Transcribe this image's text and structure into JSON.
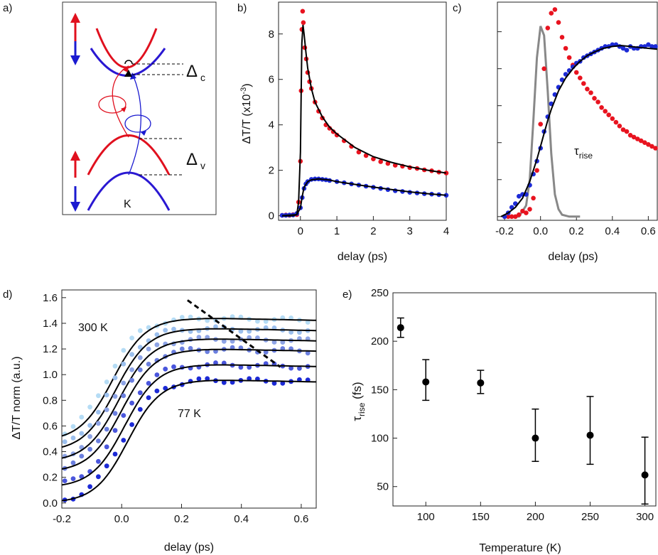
{
  "panel_letters": [
    "a)",
    "b)",
    "c)",
    "d)",
    "e)"
  ],
  "schematic": {
    "delta_c": "Δ",
    "delta_c_sub": "c",
    "delta_v": "Δ",
    "delta_v_sub": "v",
    "k_label": "K",
    "colors": {
      "spin_up": "#e0101e",
      "spin_down": "#1a1ad0"
    }
  },
  "chart_data": [
    {
      "panel": "b)",
      "type": "scatter",
      "xlabel": "delay (ps)",
      "ylabel": "ΔT/T (x10",
      "ylabel_exp": "-3",
      "ylabel_end": ")",
      "xlim": [
        -0.6,
        4.0
      ],
      "ylim": [
        -0.2,
        9.4
      ],
      "xticks": [
        0,
        1,
        2,
        3,
        4
      ],
      "yticks": [
        0,
        2,
        4,
        6,
        8
      ],
      "series": [
        {
          "color": "#e8131f",
          "kind": "points",
          "x": [
            -0.5,
            -0.4,
            -0.3,
            -0.2,
            -0.1,
            -0.05,
            0.0,
            0.02,
            0.04,
            0.06,
            0.08,
            0.12,
            0.16,
            0.2,
            0.25,
            0.3,
            0.4,
            0.5,
            0.6,
            0.7,
            0.8,
            0.9,
            1.0,
            1.2,
            1.4,
            1.6,
            1.8,
            2.0,
            2.2,
            2.4,
            2.6,
            2.8,
            3.0,
            3.2,
            3.4,
            3.6,
            3.8,
            4.0
          ],
          "y": [
            0.02,
            0.03,
            0.02,
            0.05,
            0.05,
            0.6,
            2.4,
            5.5,
            8.2,
            9.0,
            8.5,
            7.4,
            6.9,
            6.3,
            5.9,
            5.6,
            5.0,
            4.6,
            4.3,
            4.0,
            3.85,
            3.7,
            3.55,
            3.3,
            3.05,
            2.8,
            2.65,
            2.5,
            2.38,
            2.3,
            2.22,
            2.18,
            2.12,
            2.08,
            2.02,
            1.98,
            1.92,
            1.88
          ]
        },
        {
          "color": "#1c2ad6",
          "kind": "points",
          "x": [
            -0.5,
            -0.4,
            -0.3,
            -0.2,
            -0.1,
            0.0,
            0.05,
            0.1,
            0.15,
            0.2,
            0.3,
            0.4,
            0.5,
            0.6,
            0.7,
            0.8,
            1.0,
            1.2,
            1.4,
            1.6,
            1.8,
            2.0,
            2.2,
            2.4,
            2.6,
            2.8,
            3.0,
            3.2,
            3.4,
            3.6,
            3.8,
            4.0
          ],
          "y": [
            0.02,
            0.02,
            0.03,
            0.03,
            0.1,
            0.35,
            0.8,
            1.2,
            1.4,
            1.5,
            1.6,
            1.62,
            1.62,
            1.6,
            1.58,
            1.55,
            1.5,
            1.45,
            1.4,
            1.35,
            1.3,
            1.25,
            1.2,
            1.15,
            1.1,
            1.07,
            1.03,
            1.0,
            0.97,
            0.95,
            0.93,
            0.9
          ]
        },
        {
          "color": "#000000",
          "kind": "line",
          "x": [
            -0.5,
            -0.2,
            -0.1,
            -0.05,
            0.0,
            0.02,
            0.04,
            0.07,
            0.1,
            0.15,
            0.2,
            0.3,
            0.4,
            0.6,
            0.8,
            1.0,
            1.5,
            2.0,
            2.5,
            3.0,
            3.5,
            4.0
          ],
          "y": [
            0.0,
            0.0,
            0.05,
            0.6,
            2.8,
            5.3,
            7.6,
            8.4,
            8.0,
            7.2,
            6.5,
            5.6,
            5.0,
            4.35,
            3.9,
            3.6,
            3.0,
            2.6,
            2.35,
            2.15,
            2.0,
            1.88
          ]
        },
        {
          "color": "#000000",
          "kind": "line",
          "x": [
            -0.5,
            -0.1,
            0.0,
            0.05,
            0.1,
            0.2,
            0.3,
            0.5,
            0.8,
            1.0,
            1.5,
            2.0,
            2.5,
            3.0,
            3.5,
            4.0
          ],
          "y": [
            0.0,
            0.05,
            0.35,
            0.85,
            1.25,
            1.5,
            1.58,
            1.62,
            1.57,
            1.5,
            1.38,
            1.26,
            1.15,
            1.05,
            0.97,
            0.9
          ]
        }
      ]
    },
    {
      "panel": "c)",
      "type": "scatter",
      "xlabel": "delay (ps)",
      "annotation": "τ",
      "annotation_sub": "rise",
      "xlim": [
        -0.24,
        0.65
      ],
      "ylim": [
        -0.02,
        1.16
      ],
      "xticks": [
        -0.2,
        0.0,
        0.2,
        0.4,
        0.6
      ],
      "xticklabels": [
        "-0.2",
        "0.0",
        "0.2",
        "0.4",
        "0.6"
      ],
      "yticks": [
        0.0,
        0.2,
        0.4,
        0.6,
        0.8,
        1.0
      ],
      "yticklabels_shown": false,
      "series": [
        {
          "color": "#e8131f",
          "kind": "points",
          "x": [
            -0.2,
            -0.18,
            -0.16,
            -0.14,
            -0.12,
            -0.1,
            -0.08,
            -0.06,
            -0.04,
            -0.02,
            0.0,
            0.02,
            0.04,
            0.06,
            0.08,
            0.1,
            0.12,
            0.14,
            0.16,
            0.18,
            0.2,
            0.22,
            0.24,
            0.26,
            0.28,
            0.3,
            0.32,
            0.34,
            0.36,
            0.38,
            0.4,
            0.42,
            0.44,
            0.46,
            0.48,
            0.5,
            0.52,
            0.54,
            0.56,
            0.58,
            0.6,
            0.62,
            0.64
          ],
          "y": [
            0.0,
            0.0,
            0.0,
            0.0,
            0.01,
            0.03,
            0.02,
            0.04,
            0.1,
            0.25,
            0.5,
            0.8,
            1.02,
            1.1,
            1.12,
            1.05,
            0.97,
            0.91,
            0.86,
            0.82,
            0.78,
            0.75,
            0.72,
            0.69,
            0.67,
            0.64,
            0.62,
            0.59,
            0.57,
            0.55,
            0.53,
            0.51,
            0.49,
            0.47,
            0.46,
            0.44,
            0.43,
            0.42,
            0.41,
            0.4,
            0.39,
            0.38,
            0.37
          ]
        },
        {
          "color": "#1c2ad6",
          "kind": "points",
          "x": [
            -0.2,
            -0.18,
            -0.16,
            -0.14,
            -0.12,
            -0.1,
            -0.08,
            -0.06,
            -0.04,
            -0.02,
            0.0,
            0.02,
            0.04,
            0.06,
            0.08,
            0.1,
            0.12,
            0.14,
            0.16,
            0.18,
            0.2,
            0.22,
            0.24,
            0.26,
            0.28,
            0.3,
            0.32,
            0.34,
            0.36,
            0.38,
            0.4,
            0.42,
            0.44,
            0.46,
            0.48,
            0.5,
            0.52,
            0.54,
            0.56,
            0.58,
            0.6,
            0.62,
            0.64
          ],
          "y": [
            0.0,
            0.02,
            0.05,
            0.07,
            0.11,
            0.12,
            0.12,
            0.17,
            0.23,
            0.3,
            0.37,
            0.46,
            0.54,
            0.61,
            0.66,
            0.7,
            0.74,
            0.77,
            0.79,
            0.81,
            0.83,
            0.84,
            0.86,
            0.87,
            0.88,
            0.89,
            0.9,
            0.91,
            0.92,
            0.92,
            0.93,
            0.93,
            0.92,
            0.91,
            0.9,
            0.92,
            0.91,
            0.91,
            0.92,
            0.92,
            0.93,
            0.92,
            0.92
          ]
        },
        {
          "color": "#000000",
          "kind": "line",
          "x": [
            -0.22,
            -0.18,
            -0.14,
            -0.1,
            -0.06,
            -0.02,
            0.0,
            0.02,
            0.04,
            0.06,
            0.08,
            0.1,
            0.14,
            0.18,
            0.22,
            0.26,
            0.3,
            0.35,
            0.4,
            0.45,
            0.5,
            0.55,
            0.6,
            0.65
          ],
          "y": [
            0.0,
            0.02,
            0.05,
            0.1,
            0.19,
            0.31,
            0.38,
            0.45,
            0.52,
            0.58,
            0.63,
            0.68,
            0.75,
            0.8,
            0.84,
            0.87,
            0.89,
            0.91,
            0.92,
            0.925,
            0.92,
            0.915,
            0.91,
            0.905
          ]
        },
        {
          "color": "#888888",
          "kind": "line",
          "x": [
            -0.2,
            -0.12,
            -0.08,
            -0.06,
            -0.04,
            -0.02,
            0.0,
            0.02,
            0.04,
            0.06,
            0.08,
            0.1,
            0.12,
            0.16,
            0.22
          ],
          "y": [
            0.0,
            0.0,
            0.06,
            0.2,
            0.52,
            0.86,
            1.03,
            0.98,
            0.68,
            0.34,
            0.12,
            0.04,
            0.01,
            0.0,
            0.0
          ]
        }
      ]
    },
    {
      "panel": "d)",
      "type": "scatter",
      "xlabel": "delay (ps)",
      "ylabel": "ΔT/T norm (a.u.)",
      "annotations": [
        {
          "text": "300 K",
          "color": "#55d8f0"
        },
        {
          "text": "77 K",
          "color": "#1c2ad6"
        }
      ],
      "xlim": [
        -0.2,
        0.65
      ],
      "ylim": [
        -0.04,
        1.66
      ],
      "xticks": [
        -0.2,
        0.0,
        0.2,
        0.4,
        0.6
      ],
      "xticklabels": [
        "-0.2",
        "0.0",
        "0.2",
        "0.4",
        "0.6"
      ],
      "yticks": [
        0.0,
        0.2,
        0.4,
        0.6,
        0.8,
        1.0,
        1.2,
        1.4,
        1.6
      ],
      "yticklabels": [
        "0.0",
        "0.2",
        "0.4",
        "0.6",
        "0.8",
        "1.0",
        "1.2",
        "1.4",
        "1.6"
      ],
      "offsets": [
        0.48,
        0.4,
        0.32,
        0.24,
        0.12,
        0.0
      ],
      "curve_rise_centers": [
        -0.03,
        -0.02,
        -0.01,
        0.0,
        0.01,
        0.02
      ],
      "colors": [
        "#b5dcf5",
        "#9cc0ee",
        "#8ea4e6",
        "#6b7fdf",
        "#4a56dc",
        "#1c2ad6"
      ],
      "dashed_line": {
        "x": [
          0.22,
          0.53
        ],
        "y": [
          1.58,
          1.06
        ]
      }
    },
    {
      "panel": "e)",
      "type": "scatter",
      "xlabel": "Temperature (K)",
      "ylabel": "τ",
      "ylabel_sub": "rise",
      "ylabel_end": " (fs)",
      "xlim": [
        70,
        310
      ],
      "ylim": [
        30,
        250
      ],
      "xticks": [
        100,
        150,
        200,
        250,
        300
      ],
      "yticks": [
        50,
        100,
        150,
        200,
        250
      ],
      "x": [
        77,
        100,
        150,
        200,
        250,
        300
      ],
      "y": [
        214,
        158,
        157,
        100,
        103,
        62
      ],
      "yerr_low": [
        10,
        19,
        11,
        24,
        30,
        30
      ],
      "yerr_high": [
        10,
        23,
        13,
        30,
        40,
        39
      ],
      "color": "#000000"
    }
  ]
}
